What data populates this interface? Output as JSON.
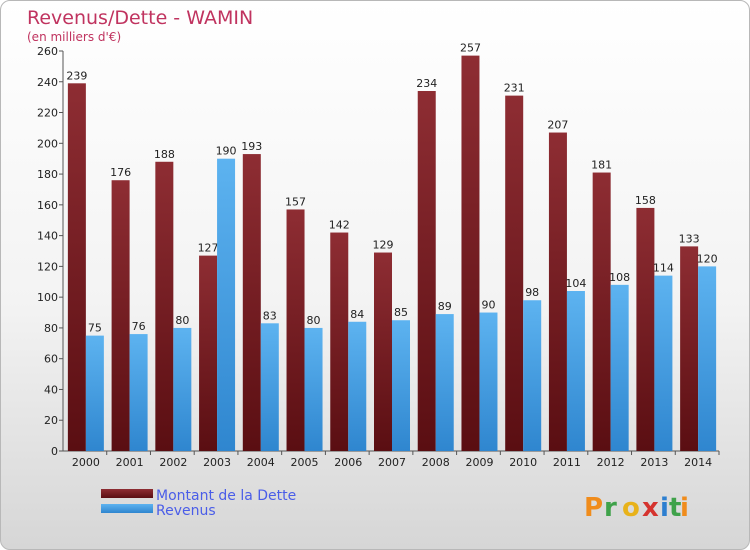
{
  "chart_data": {
    "type": "bar",
    "title": "Revenus/Dette - WAMIN",
    "subtitle": "(en milliers d'€)",
    "categories": [
      "2000",
      "2001",
      "2002",
      "2003",
      "2004",
      "2005",
      "2006",
      "2007",
      "2008",
      "2009",
      "2010",
      "2011",
      "2012",
      "2013",
      "2014"
    ],
    "series": [
      {
        "name": "Montant de la Dette",
        "color": "#7a1a1f",
        "values": [
          239,
          176,
          188,
          127,
          193,
          157,
          142,
          129,
          234,
          257,
          231,
          207,
          181,
          158,
          133
        ]
      },
      {
        "name": "Revenus",
        "color": "#3b9be0",
        "values": [
          75,
          76,
          80,
          190,
          83,
          80,
          84,
          85,
          89,
          90,
          98,
          104,
          108,
          114,
          120
        ]
      }
    ],
    "ylim": [
      0,
      260
    ],
    "yticks": [
      0,
      20,
      40,
      60,
      80,
      100,
      120,
      140,
      160,
      180,
      200,
      220,
      240,
      260
    ],
    "grid": false,
    "legend_position": "bottom-left"
  },
  "logo": {
    "text": "Proxiti"
  }
}
